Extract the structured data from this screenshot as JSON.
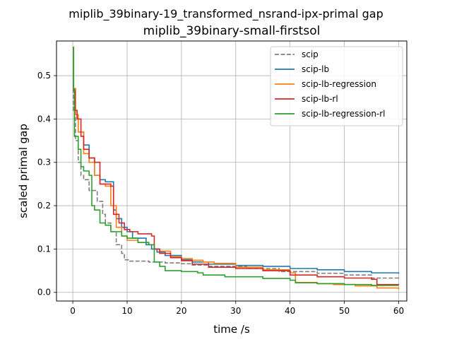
{
  "chart_data": {
    "type": "line",
    "title": "miplib_39binary-19_transformed_nsrand-ipx-primal gap",
    "subtitle": "miplib_39binary-small-firstsol",
    "xlabel": "time /s",
    "ylabel": "scaled primal gap",
    "xlim": [
      -3,
      61.5
    ],
    "ylim": [
      -0.02,
      0.58
    ],
    "xticks": [
      0,
      10,
      20,
      30,
      40,
      50,
      60
    ],
    "xtick_labels": [
      "0",
      "10",
      "20",
      "30",
      "40",
      "50",
      "60"
    ],
    "yticks": [
      0.0,
      0.1,
      0.2,
      0.3,
      0.4,
      0.5
    ],
    "ytick_labels": [
      "0.0",
      "0.1",
      "0.2",
      "0.3",
      "0.4",
      "0.5"
    ],
    "grid": true,
    "legend_position": "top-right",
    "series": [
      {
        "name": "scip",
        "color": "#7f7f7f",
        "dash": "dashed",
        "x": [
          0,
          0.15,
          0.5,
          1.0,
          1.5,
          2.0,
          3.0,
          4.5,
          5.5,
          6.0,
          7.0,
          8.0,
          9.0,
          9.5,
          10.5,
          14.0,
          17.0,
          20.0,
          22.0,
          25.0,
          32.0,
          38.0,
          45.0,
          50.0,
          55.0,
          60.0
        ],
        "y": [
          0.565,
          0.42,
          0.35,
          0.3,
          0.27,
          0.26,
          0.235,
          0.21,
          0.18,
          0.16,
          0.14,
          0.11,
          0.09,
          0.075,
          0.072,
          0.07,
          0.068,
          0.066,
          0.063,
          0.06,
          0.055,
          0.048,
          0.044,
          0.04,
          0.033,
          0.03
        ]
      },
      {
        "name": "scip-lb",
        "color": "#1f77b4",
        "dash": "solid",
        "x": [
          0,
          0.15,
          0.5,
          1.0,
          2.0,
          3.0,
          4.0,
          5.0,
          6.0,
          7.5,
          8.0,
          9.0,
          10.0,
          11.0,
          13.5,
          14.5,
          15.5,
          17.0,
          20.0,
          22.0,
          25.0,
          30.0,
          35.0,
          40.0,
          45.0,
          50.0,
          55.0,
          60.0
        ],
        "y": [
          0.565,
          0.47,
          0.41,
          0.37,
          0.34,
          0.31,
          0.27,
          0.26,
          0.255,
          0.19,
          0.17,
          0.15,
          0.14,
          0.125,
          0.11,
          0.1,
          0.093,
          0.085,
          0.075,
          0.07,
          0.065,
          0.062,
          0.06,
          0.055,
          0.052,
          0.048,
          0.045,
          0.043
        ]
      },
      {
        "name": "scip-lb-regression",
        "color": "#ff7f0e",
        "dash": "solid",
        "x": [
          0,
          0.15,
          0.5,
          1.0,
          2.0,
          3.0,
          4.0,
          5.0,
          6.0,
          7.0,
          8.0,
          9.0,
          10.0,
          12.0,
          14.0,
          15.0,
          16.0,
          18.0,
          20.0,
          22.0,
          24.0,
          26.0,
          30.0,
          35.0,
          40.0,
          41.0,
          45.0,
          48.0,
          52.0,
          56.0,
          60.0
        ],
        "y": [
          0.565,
          0.47,
          0.41,
          0.37,
          0.32,
          0.3,
          0.27,
          0.25,
          0.245,
          0.2,
          0.15,
          0.13,
          0.12,
          0.115,
          0.11,
          0.1,
          0.095,
          0.082,
          0.078,
          0.074,
          0.07,
          0.067,
          0.058,
          0.052,
          0.045,
          0.023,
          0.02,
          0.018,
          0.015,
          0.01,
          0.007
        ]
      },
      {
        "name": "scip-lb-rl",
        "color": "#d62728",
        "dash": "solid",
        "x": [
          0,
          0.15,
          0.4,
          0.8,
          1.5,
          2.0,
          3.0,
          4.0,
          5.0,
          6.0,
          7.0,
          7.5,
          8.5,
          9.5,
          10.5,
          12.0,
          14.5,
          15.0,
          16.0,
          18.0,
          20.0,
          22.0,
          25.0,
          30.0,
          35.0,
          40.0,
          45.0,
          50.0,
          55.0,
          56.0,
          60.0
        ],
        "y": [
          0.565,
          0.465,
          0.42,
          0.4,
          0.36,
          0.33,
          0.31,
          0.3,
          0.25,
          0.25,
          0.245,
          0.18,
          0.16,
          0.145,
          0.14,
          0.135,
          0.13,
          0.1,
          0.09,
          0.08,
          0.073,
          0.065,
          0.058,
          0.055,
          0.05,
          0.04,
          0.036,
          0.033,
          0.03,
          0.018,
          0.017
        ]
      },
      {
        "name": "scip-lb-regression-rl",
        "color": "#2ca02c",
        "dash": "solid",
        "x": [
          0,
          0.15,
          0.3,
          0.6,
          1.0,
          1.5,
          2.0,
          3.0,
          3.5,
          4.0,
          5.0,
          6.0,
          7.0,
          9.0,
          10.0,
          12.0,
          14.0,
          15.0,
          16.0,
          17.0,
          20.0,
          23.0,
          24.0,
          28.0,
          35.0,
          40.0,
          41.0,
          45.0,
          50.0,
          55.0,
          60.0
        ],
        "y": [
          0.565,
          0.47,
          0.36,
          0.36,
          0.33,
          0.29,
          0.28,
          0.27,
          0.2,
          0.19,
          0.16,
          0.155,
          0.14,
          0.13,
          0.125,
          0.115,
          0.11,
          0.07,
          0.06,
          0.05,
          0.048,
          0.045,
          0.04,
          0.036,
          0.032,
          0.028,
          0.022,
          0.02,
          0.018,
          0.016,
          0.016
        ]
      }
    ]
  }
}
